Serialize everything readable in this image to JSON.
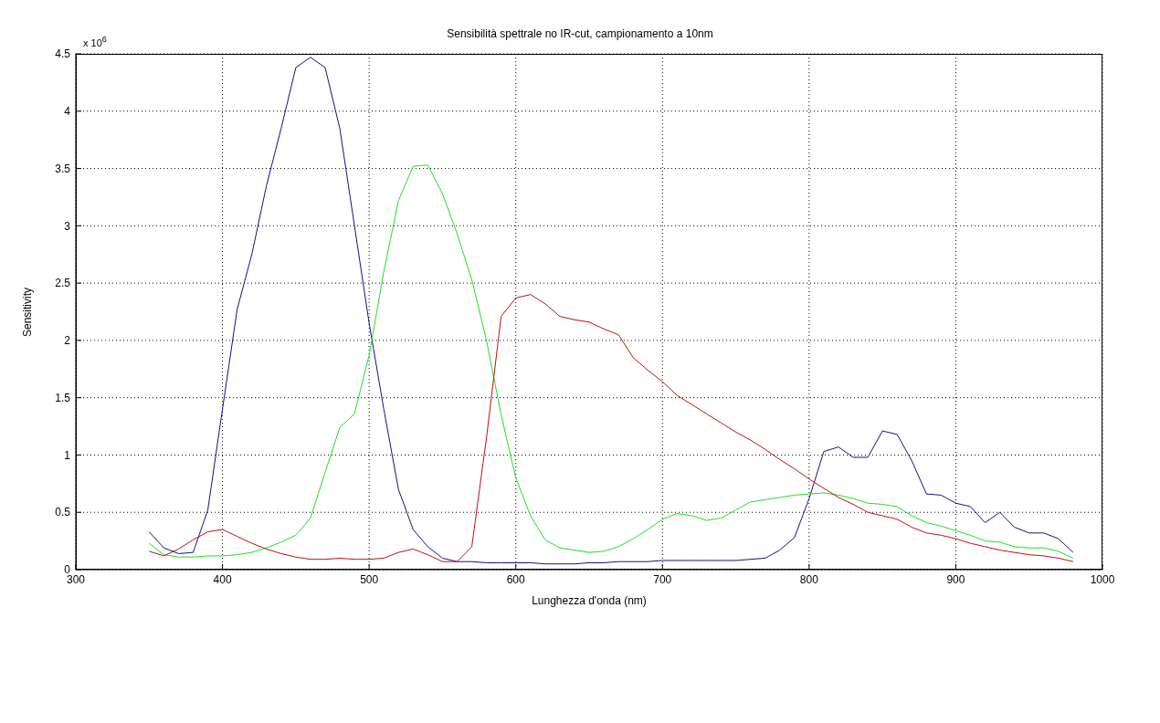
{
  "chart_data": {
    "type": "line",
    "title": "Sensibilità spettrale no IR-cut, campionamento a 10nm",
    "xlabel": "Lunghezza d'onda (nm)",
    "ylabel": "Sensitivity",
    "annotations": [
      "x 10$^{6}$"
    ],
    "x": [
      350,
      360,
      370,
      380,
      390,
      400,
      410,
      420,
      430,
      440,
      450,
      460,
      470,
      480,
      490,
      500,
      510,
      520,
      530,
      540,
      550,
      560,
      570,
      580,
      590,
      600,
      610,
      620,
      630,
      640,
      650,
      660,
      670,
      680,
      690,
      700,
      710,
      720,
      730,
      740,
      750,
      760,
      770,
      780,
      790,
      800,
      810,
      820,
      830,
      840,
      850,
      860,
      870,
      880,
      890,
      900,
      910,
      920,
      930,
      940,
      950,
      960,
      970,
      980
    ],
    "series": [
      {
        "color": "#101090",
        "values": [
          0.33,
          0.19,
          0.14,
          0.15,
          0.52,
          1.4,
          2.27,
          2.75,
          3.35,
          3.85,
          4.38,
          4.47,
          4.38,
          3.85,
          3.0,
          2.15,
          1.4,
          0.7,
          0.35,
          0.2,
          0.1,
          0.07,
          0.07,
          0.06,
          0.06,
          0.06,
          0.06,
          0.05,
          0.05,
          0.05,
          0.06,
          0.06,
          0.07,
          0.07,
          0.07,
          0.08,
          0.08,
          0.08,
          0.08,
          0.08,
          0.08,
          0.09,
          0.1,
          0.17,
          0.28,
          0.62,
          1.03,
          1.07,
          0.98,
          0.98,
          1.21,
          1.18,
          0.95,
          0.66,
          0.65,
          0.58,
          0.55,
          0.41,
          0.5,
          0.37,
          0.32,
          0.32,
          0.27,
          0.15
        ]
      },
      {
        "color": "#20e020",
        "values": [
          0.23,
          0.13,
          0.11,
          0.11,
          0.12,
          0.12,
          0.13,
          0.15,
          0.19,
          0.24,
          0.3,
          0.45,
          0.85,
          1.24,
          1.36,
          1.87,
          2.6,
          3.22,
          3.52,
          3.53,
          3.28,
          2.93,
          2.53,
          2.0,
          1.35,
          0.8,
          0.47,
          0.26,
          0.19,
          0.17,
          0.15,
          0.16,
          0.2,
          0.27,
          0.35,
          0.44,
          0.49,
          0.47,
          0.43,
          0.45,
          0.52,
          0.59,
          0.61,
          0.63,
          0.65,
          0.66,
          0.67,
          0.65,
          0.62,
          0.58,
          0.57,
          0.55,
          0.47,
          0.41,
          0.38,
          0.34,
          0.3,
          0.25,
          0.24,
          0.2,
          0.19,
          0.19,
          0.16,
          0.1
        ]
      },
      {
        "color": "#c01010",
        "values": [
          0.16,
          0.12,
          0.18,
          0.26,
          0.33,
          0.35,
          0.29,
          0.23,
          0.18,
          0.14,
          0.11,
          0.09,
          0.09,
          0.1,
          0.09,
          0.09,
          0.1,
          0.15,
          0.18,
          0.13,
          0.07,
          0.07,
          0.2,
          1.15,
          2.21,
          2.37,
          2.4,
          2.32,
          2.21,
          2.18,
          2.16,
          2.1,
          2.05,
          1.85,
          1.74,
          1.64,
          1.52,
          1.44,
          1.36,
          1.28,
          1.2,
          1.13,
          1.05,
          0.96,
          0.88,
          0.79,
          0.71,
          0.63,
          0.57,
          0.5,
          0.47,
          0.44,
          0.37,
          0.32,
          0.3,
          0.27,
          0.23,
          0.2,
          0.17,
          0.15,
          0.13,
          0.12,
          0.1,
          0.07
        ]
      }
    ],
    "xlim": [
      300,
      1000
    ],
    "xticks": [
      300,
      400,
      500,
      600,
      700,
      800,
      900,
      1000
    ],
    "ylim": [
      0,
      4.5
    ],
    "yticks": [
      0,
      0.5,
      1,
      1.5,
      2,
      2.5,
      3,
      3.5,
      4,
      4.5
    ],
    "grid": true,
    "marker": "none",
    "line_style": "solid",
    "legend": false
  }
}
